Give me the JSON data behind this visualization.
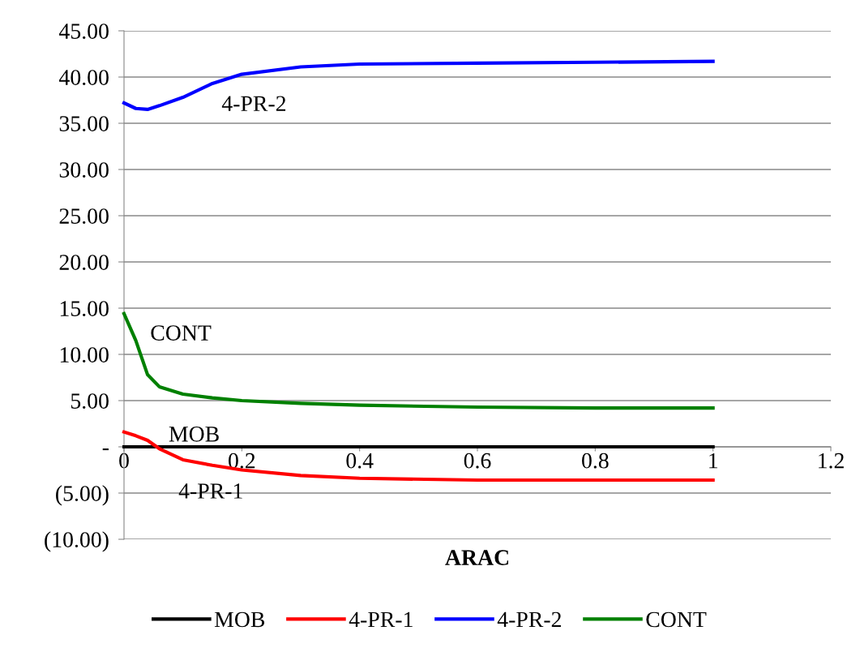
{
  "chart_data": {
    "type": "line",
    "xlabel": "ARAC",
    "xlim": [
      0,
      1.2
    ],
    "ylim": [
      -10,
      45
    ],
    "xticks": [
      0,
      0.2,
      0.4,
      0.6,
      0.8,
      1,
      1.2
    ],
    "yticks": [
      {
        "value": -10,
        "label": "(10.00)"
      },
      {
        "value": -5,
        "label": "(5.00)"
      },
      {
        "value": 0,
        "label": "-"
      },
      {
        "value": 5,
        "label": "5.00"
      },
      {
        "value": 10,
        "label": "10.00"
      },
      {
        "value": 15,
        "label": "15.00"
      },
      {
        "value": 20,
        "label": "20.00"
      },
      {
        "value": 25,
        "label": "25.00"
      },
      {
        "value": 30,
        "label": "30.00"
      },
      {
        "value": 35,
        "label": "35.00"
      },
      {
        "value": 40,
        "label": "40.00"
      },
      {
        "value": 45,
        "label": "45.00"
      }
    ],
    "grid": "y",
    "legend": "bottom",
    "marker": "none",
    "line_style": "solid",
    "x": [
      0,
      0.02,
      0.04,
      0.06,
      0.1,
      0.15,
      0.2,
      0.3,
      0.4,
      0.6,
      0.8,
      1
    ],
    "series": [
      {
        "name": "MOB",
        "color": "#000000",
        "values": [
          0,
          0,
          0,
          0,
          0,
          0,
          0,
          0,
          0,
          0,
          0,
          0
        ]
      },
      {
        "name": "4-PR-1",
        "color": "#ff0000",
        "values": [
          1.6,
          1.2,
          0.7,
          -0.2,
          -1.4,
          -2.0,
          -2.5,
          -3.1,
          -3.4,
          -3.6,
          -3.6,
          -3.6
        ]
      },
      {
        "name": "4-PR-2",
        "color": "#0000ff",
        "values": [
          37.2,
          36.6,
          36.5,
          36.9,
          37.8,
          39.3,
          40.3,
          41.1,
          41.4,
          41.5,
          41.6,
          41.7
        ]
      },
      {
        "name": "CONT",
        "color": "#008000",
        "values": [
          14.4,
          11.5,
          7.8,
          6.5,
          5.7,
          5.3,
          5.0,
          4.7,
          4.5,
          4.3,
          4.2,
          4.2
        ]
      }
    ]
  }
}
